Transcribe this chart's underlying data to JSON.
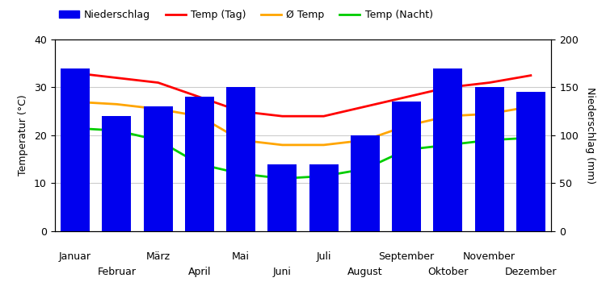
{
  "months": [
    "Januar",
    "Februar",
    "März",
    "April",
    "Mai",
    "Juni",
    "Juli",
    "August",
    "September",
    "Oktober",
    "November",
    "Dezember"
  ],
  "niederschlag": [
    170,
    120,
    130,
    140,
    150,
    70,
    70,
    100,
    135,
    170,
    150,
    145
  ],
  "temp_tag": [
    33,
    32,
    31,
    28,
    25,
    24,
    24,
    26,
    28,
    30,
    31,
    32.5
  ],
  "temp_avg": [
    27,
    26.5,
    25.5,
    24,
    19,
    18,
    18,
    19,
    22,
    24,
    24.5,
    26
  ],
  "temp_nacht": [
    21.5,
    21,
    19,
    14,
    12,
    11,
    11.5,
    13,
    17,
    18,
    19,
    19.5
  ],
  "bar_color": "#0000ee",
  "line_tag_color": "#ff0000",
  "line_avg_color": "#ffa500",
  "line_nacht_color": "#00cc00",
  "ylabel_left": "Temperatur (°C)",
  "ylabel_right": "Niederschlag (mm)",
  "ylim_left": [
    0,
    40
  ],
  "ylim_right": [
    0,
    200
  ],
  "yticks_left": [
    0,
    10,
    20,
    30,
    40
  ],
  "yticks_right": [
    0,
    50,
    100,
    150,
    200
  ],
  "legend_labels": [
    "Niederschlag",
    "Temp (Tag)",
    "Ø Temp",
    "Temp (Nacht)"
  ],
  "background_color": "#ffffff",
  "grid_color": "#cccccc"
}
